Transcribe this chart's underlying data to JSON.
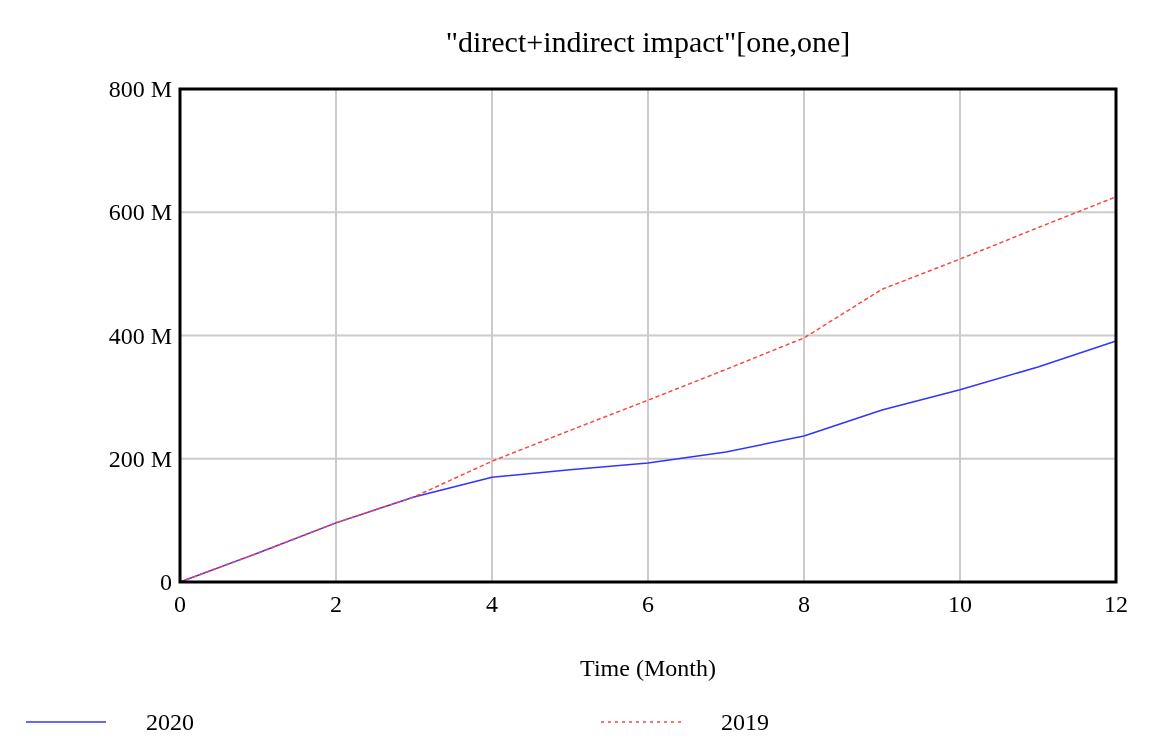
{
  "chart_data": {
    "type": "line",
    "title": "\"direct+indirect impact\"[one,one]",
    "xlabel": "Time (Month)",
    "x": [
      0,
      1,
      2,
      3,
      4,
      5,
      6,
      7,
      8,
      9,
      10,
      11,
      12
    ],
    "series": [
      {
        "name": "2020",
        "color": "#3333ff",
        "line_style": "solid",
        "values": [
          0,
          47000000,
          96000000,
          138000000,
          170000000,
          182000000,
          193000000,
          211000000,
          237000000,
          279000000,
          312000000,
          349000000,
          391000000
        ]
      },
      {
        "name": "2019",
        "color": "#ff4444",
        "line_style": "dotted",
        "values": [
          0,
          47000000,
          96000000,
          138000000,
          196000000,
          246000000,
          295000000,
          345000000,
          396000000,
          475000000,
          524000000,
          575000000,
          625000000
        ]
      }
    ],
    "xlim": [
      0,
      12
    ],
    "xticks": [
      0,
      2,
      4,
      6,
      8,
      10,
      12
    ],
    "ylim": [
      0,
      800000000
    ],
    "yticks": [
      {
        "value": 0,
        "label": "0"
      },
      {
        "value": 200000000,
        "label": "200 M"
      },
      {
        "value": 400000000,
        "label": "400 M"
      },
      {
        "value": 600000000,
        "label": "600 M"
      },
      {
        "value": 800000000,
        "label": "800 M"
      }
    ],
    "grid": true,
    "legend": "bottom"
  }
}
